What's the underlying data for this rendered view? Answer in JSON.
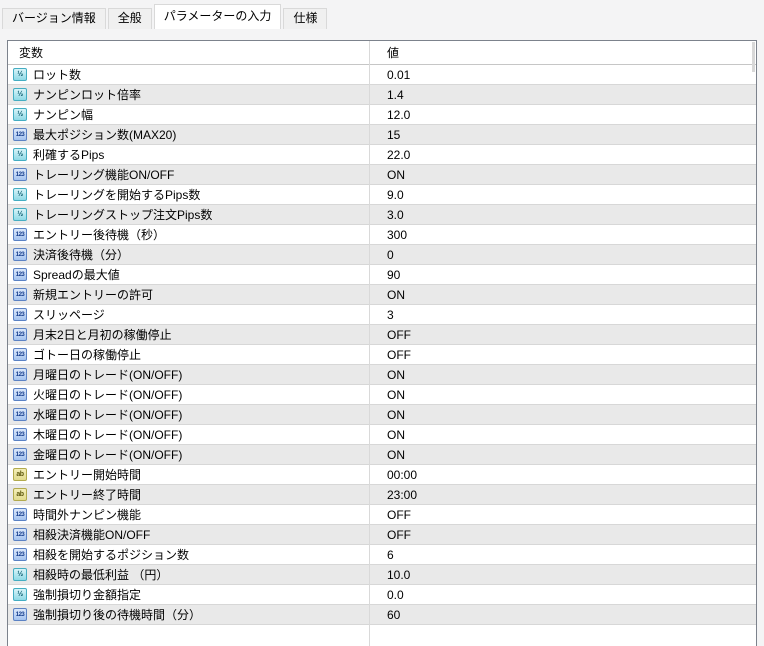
{
  "tabs": [
    {
      "label": "バージョン情報",
      "active": false
    },
    {
      "label": "全般",
      "active": false
    },
    {
      "label": "パラメーターの入力",
      "active": true
    },
    {
      "label": "仕様",
      "active": false
    }
  ],
  "table": {
    "columns": [
      "変数",
      "値"
    ],
    "icon_types": {
      "double": "½",
      "integer": "123",
      "string": "ab"
    },
    "rows": [
      {
        "type": "double",
        "name": "ロット数",
        "value": "0.01"
      },
      {
        "type": "double",
        "name": "ナンピンロット倍率",
        "value": "1.4"
      },
      {
        "type": "double",
        "name": "ナンピン幅",
        "value": "12.0"
      },
      {
        "type": "integer",
        "name": "最大ポジション数(MAX20)",
        "value": "15"
      },
      {
        "type": "double",
        "name": "利確するPips",
        "value": "22.0"
      },
      {
        "type": "integer",
        "name": "トレーリング機能ON/OFF",
        "value": "ON"
      },
      {
        "type": "double",
        "name": "トレーリングを開始するPips数",
        "value": "9.0"
      },
      {
        "type": "double",
        "name": "トレーリングストップ注文Pips数",
        "value": "3.0"
      },
      {
        "type": "integer",
        "name": "エントリー後待機（秒）",
        "value": "300"
      },
      {
        "type": "integer",
        "name": "決済後待機（分）",
        "value": "0"
      },
      {
        "type": "integer",
        "name": "Spreadの最大値",
        "value": "90"
      },
      {
        "type": "integer",
        "name": "新規エントリーの許可",
        "value": "ON"
      },
      {
        "type": "integer",
        "name": "スリッページ",
        "value": "3"
      },
      {
        "type": "integer",
        "name": "月末2日と月初の稼働停止",
        "value": "OFF"
      },
      {
        "type": "integer",
        "name": "ゴトー日の稼働停止",
        "value": "OFF"
      },
      {
        "type": "integer",
        "name": "月曜日のトレード(ON/OFF)",
        "value": "ON"
      },
      {
        "type": "integer",
        "name": "火曜日のトレード(ON/OFF)",
        "value": "ON"
      },
      {
        "type": "integer",
        "name": "水曜日のトレード(ON/OFF)",
        "value": "ON"
      },
      {
        "type": "integer",
        "name": "木曜日のトレード(ON/OFF)",
        "value": "ON"
      },
      {
        "type": "integer",
        "name": "金曜日のトレード(ON/OFF)",
        "value": "ON"
      },
      {
        "type": "string",
        "name": "エントリー開始時間",
        "value": "00:00"
      },
      {
        "type": "string",
        "name": "エントリー終了時間",
        "value": "23:00"
      },
      {
        "type": "integer",
        "name": "時間外ナンピン機能",
        "value": "OFF"
      },
      {
        "type": "integer",
        "name": "相殺決済機能ON/OFF",
        "value": "OFF"
      },
      {
        "type": "integer",
        "name": "相殺を開始するポジション数",
        "value": "6"
      },
      {
        "type": "double",
        "name": "相殺時の最低利益 （円）",
        "value": "10.0"
      },
      {
        "type": "double",
        "name": "強制損切り金額指定",
        "value": "0.0"
      },
      {
        "type": "integer",
        "name": "強制損切り後の待機時間（分）",
        "value": "60"
      }
    ]
  },
  "colors": {
    "dialog_bg": "#f4f4f5",
    "tab_active_bg": "#ffffff",
    "tab_inactive_bg": "#f0f0f0",
    "table_border": "#7c828c",
    "row_stripe": "#e9e9e9",
    "row_separator": "#d7d7d7",
    "icon_double": "#8ed9e6",
    "icon_integer": "#a3c2ef",
    "icon_string": "#e2db8d"
  }
}
